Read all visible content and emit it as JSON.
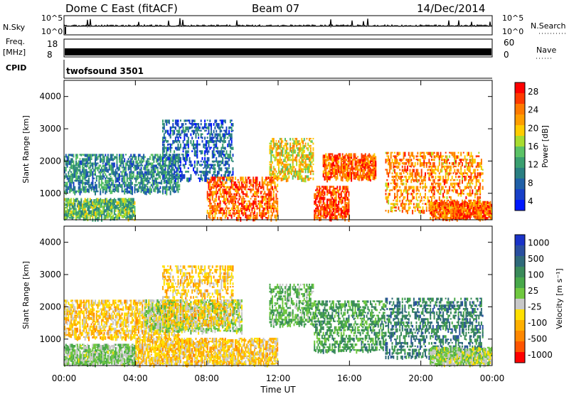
{
  "header": {
    "radar": "Dome C East (fitACF)",
    "beam": "Beam 07",
    "date": "14/Dec/2014"
  },
  "strips": {
    "nsky_label": "N.Sky",
    "nsearch_label": "N.Search",
    "nsky_ticks": [
      "10^5",
      "10^0"
    ],
    "freq_label_1": "Freq.",
    "freq_label_2": "[MHz]",
    "freq_ticks": [
      "18",
      "8"
    ],
    "nave_label": "Nave",
    "nave_ticks": [
      "60",
      "0"
    ],
    "cpid_label": "CPID",
    "cpid_value": "twofsound 3501"
  },
  "panels": {
    "ylabel": "Slant Range [km]",
    "yticks": [
      "4000",
      "3000",
      "2000",
      "1000"
    ],
    "xlabel": "Time UT",
    "xticks": [
      "00:00",
      "04:00",
      "08:00",
      "12:00",
      "16:00",
      "20:00",
      "00:00"
    ]
  },
  "colorbars": {
    "power_label": "Power [dB]",
    "power_ticks": [
      "28",
      "24",
      "20",
      "16",
      "12",
      "8",
      "4"
    ],
    "power_colors": [
      "#ff0000",
      "#ff3a00",
      "#ff7a00",
      "#ff9e00",
      "#ffcc00",
      "#a8dc30",
      "#5bc266",
      "#3a9f70",
      "#2a7f82",
      "#2060a8",
      "#1840c8",
      "#0018ff"
    ],
    "velocity_label": "Velocity [m s⁻¹]",
    "velocity_ticks": [
      "1000",
      "500",
      "100",
      "25",
      "-25",
      "-100",
      "-500",
      "-1000"
    ],
    "velocity_colors": [
      "#1a33c8",
      "#2a4fa0",
      "#2f6a7a",
      "#3a8a5a",
      "#48a84a",
      "#70c840",
      "#c8c8c8",
      "#ffe000",
      "#ffb000",
      "#ff8800",
      "#ff5500",
      "#ff0000"
    ]
  },
  "chart_data": [
    {
      "type": "heatmap",
      "title": "Power",
      "ylabel": "Slant Range [km]",
      "xlabel": "Time UT",
      "x_range": [
        "00:00",
        "24:00"
      ],
      "ylim": [
        180,
        4500
      ],
      "colorbar": {
        "label": "Power [dB]",
        "range": [
          0,
          32
        ]
      },
      "echo_regions": [
        {
          "t": [
            0.0,
            4.0
          ],
          "range": [
            180,
            800
          ],
          "level": 14
        },
        {
          "t": [
            0.0,
            6.5
          ],
          "range": [
            1000,
            2200
          ],
          "level": 10
        },
        {
          "t": [
            5.5,
            9.5
          ],
          "range": [
            1400,
            3300
          ],
          "level": 7
        },
        {
          "t": [
            8.0,
            12.0
          ],
          "range": [
            180,
            1500
          ],
          "level": 26
        },
        {
          "t": [
            11.5,
            14.0
          ],
          "range": [
            1400,
            2700
          ],
          "level": 20
        },
        {
          "t": [
            14.5,
            17.5
          ],
          "range": [
            1400,
            2200
          ],
          "level": 26
        },
        {
          "t": [
            14.0,
            16.0
          ],
          "range": [
            180,
            1200
          ],
          "level": 28
        },
        {
          "t": [
            18.0,
            23.5
          ],
          "range": [
            400,
            2300
          ],
          "level": 24
        },
        {
          "t": [
            20.5,
            24.0
          ],
          "range": [
            180,
            700
          ],
          "level": 26
        }
      ]
    },
    {
      "type": "heatmap",
      "title": "Velocity",
      "ylabel": "Slant Range [km]",
      "xlabel": "Time UT",
      "x_range": [
        "00:00",
        "24:00"
      ],
      "ylim": [
        180,
        4500
      ],
      "colorbar": {
        "label": "Velocity [m s-1]",
        "range": [
          -1000,
          1000
        ]
      },
      "echo_regions": [
        {
          "t": [
            0.0,
            4.0
          ],
          "range": [
            180,
            800
          ],
          "level": 60
        },
        {
          "t": [
            0.0,
            6.5
          ],
          "range": [
            1000,
            2200
          ],
          "level": -300
        },
        {
          "t": [
            4.5,
            10.0
          ],
          "range": [
            1200,
            2200
          ],
          "level": 0
        },
        {
          "t": [
            5.5,
            9.5
          ],
          "range": [
            1400,
            3300
          ],
          "level": -300
        },
        {
          "t": [
            4.0,
            12.0
          ],
          "range": [
            180,
            1000
          ],
          "level": -300
        },
        {
          "t": [
            11.5,
            14.0
          ],
          "range": [
            1400,
            2700
          ],
          "level": 200
        },
        {
          "t": [
            14.0,
            18.0
          ],
          "range": [
            600,
            2200
          ],
          "level": 300
        },
        {
          "t": [
            18.0,
            23.5
          ],
          "range": [
            400,
            2300
          ],
          "level": 500
        },
        {
          "t": [
            20.5,
            24.0
          ],
          "range": [
            180,
            700
          ],
          "level": 0
        }
      ]
    }
  ]
}
